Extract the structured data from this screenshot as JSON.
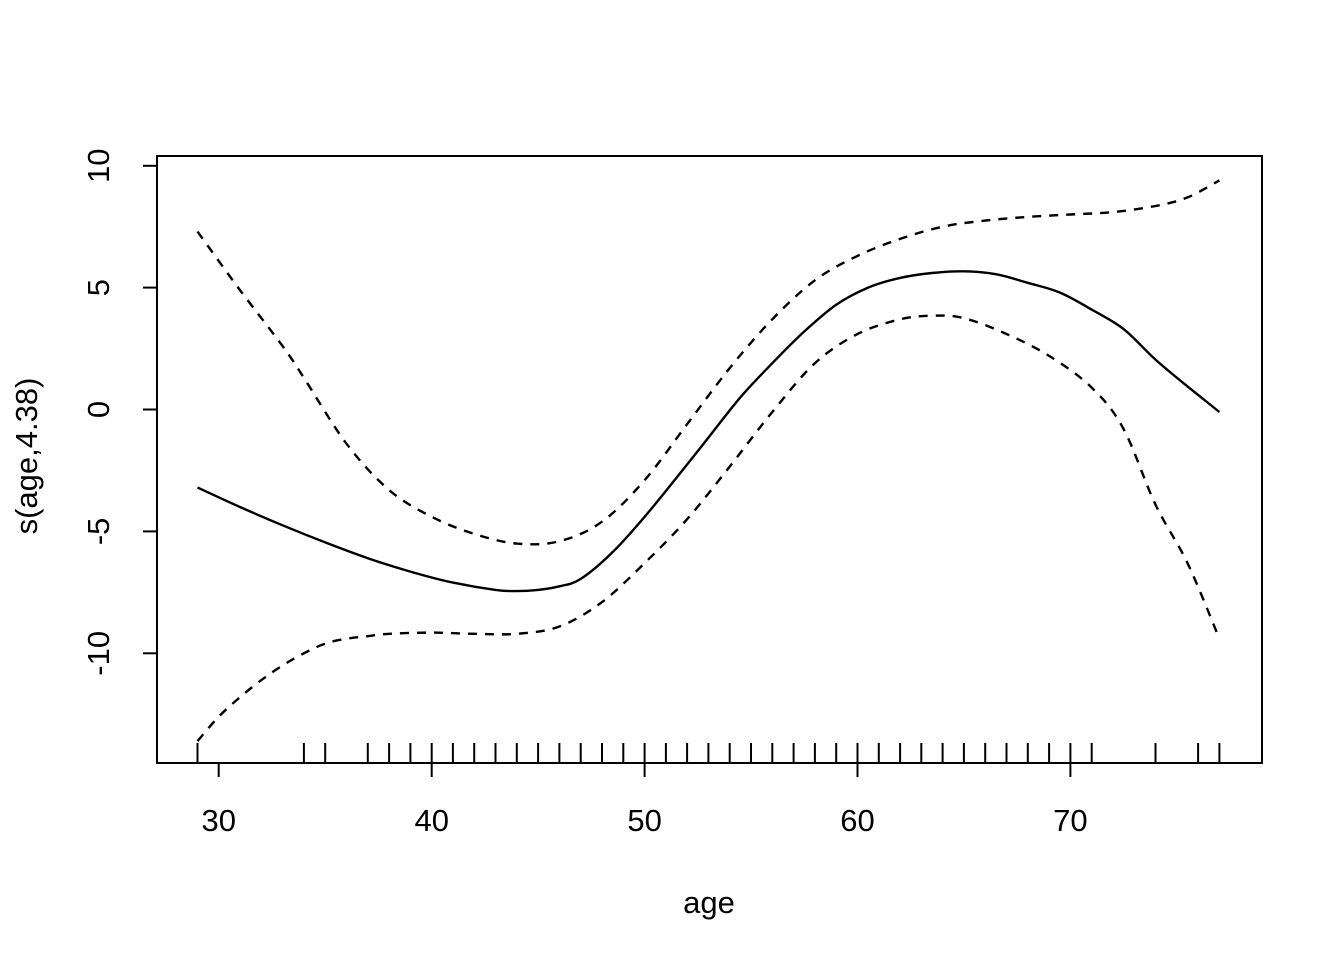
{
  "chart_data": {
    "type": "line",
    "title": "",
    "xlabel": "age",
    "ylabel": "s(age,4.38)",
    "xlim": [
      27.1,
      79.0
    ],
    "ylim": [
      -14.5,
      10.4
    ],
    "x_ticks": [
      30,
      40,
      50,
      60,
      70
    ],
    "y_ticks": [
      -10,
      -5,
      0,
      5,
      10
    ],
    "grid": false,
    "legend": "none",
    "line_color": "#000000",
    "background_color": "#ffffff",
    "rug_x": [
      29,
      34,
      35,
      37,
      38,
      39,
      40,
      41,
      42,
      43,
      44,
      45,
      46,
      47,
      48,
      49,
      50,
      51,
      52,
      53,
      54,
      55,
      56,
      57,
      58,
      59,
      60,
      61,
      62,
      63,
      64,
      65,
      66,
      67,
      68,
      69,
      70,
      71,
      74,
      76,
      77
    ],
    "series": [
      {
        "name": "smooth fit",
        "style": "solid",
        "x": [
          29,
          31,
          33,
          35,
          37,
          39,
          41,
          43,
          44,
          45,
          46,
          47,
          48.5,
          50,
          51.5,
          53,
          54.5,
          56,
          57.5,
          59,
          60.5,
          62,
          63.5,
          65,
          66.5,
          68,
          69.5,
          71,
          72.5,
          74,
          75.5,
          77
        ],
        "y": [
          -3.2,
          -4.0,
          -4.75,
          -5.45,
          -6.1,
          -6.65,
          -7.1,
          -7.4,
          -7.45,
          -7.4,
          -7.25,
          -6.95,
          -5.85,
          -4.4,
          -2.8,
          -1.15,
          0.5,
          1.9,
          3.2,
          4.3,
          5.0,
          5.4,
          5.6,
          5.67,
          5.55,
          5.2,
          4.8,
          4.1,
          3.3,
          2.05,
          0.95,
          -0.1
        ]
      },
      {
        "name": "upper 95% CI",
        "style": "dashed",
        "x": [
          29,
          31,
          33,
          34,
          36,
          38,
          40,
          42,
          44,
          46,
          48,
          50,
          52,
          54,
          56,
          58,
          60,
          62,
          64,
          66,
          68,
          70,
          72,
          74,
          75.5,
          77
        ],
        "y": [
          7.3,
          4.9,
          2.6,
          1.3,
          -1.4,
          -3.3,
          -4.4,
          -5.1,
          -5.5,
          -5.4,
          -4.6,
          -2.9,
          -0.6,
          1.7,
          3.7,
          5.3,
          6.3,
          7.0,
          7.5,
          7.75,
          7.9,
          8.0,
          8.1,
          8.35,
          8.7,
          9.4
        ]
      },
      {
        "name": "lower 95% CI",
        "style": "dashed",
        "x": [
          29,
          30,
          31,
          32,
          33,
          34,
          35,
          36,
          37,
          38,
          40,
          42,
          44,
          46,
          48,
          50,
          52,
          54,
          56,
          58,
          60,
          62,
          63.5,
          65,
          67,
          69,
          71,
          72.5,
          74,
          75.5,
          77
        ],
        "y": [
          -13.6,
          -12.6,
          -11.8,
          -11.1,
          -10.5,
          -10.0,
          -9.6,
          -9.4,
          -9.3,
          -9.2,
          -9.15,
          -9.2,
          -9.2,
          -8.9,
          -7.9,
          -6.3,
          -4.5,
          -2.34,
          -0.1,
          1.9,
          3.1,
          3.7,
          3.85,
          3.75,
          3.1,
          2.2,
          0.9,
          -0.8,
          -3.9,
          -6.3,
          -9.4
        ]
      }
    ]
  }
}
